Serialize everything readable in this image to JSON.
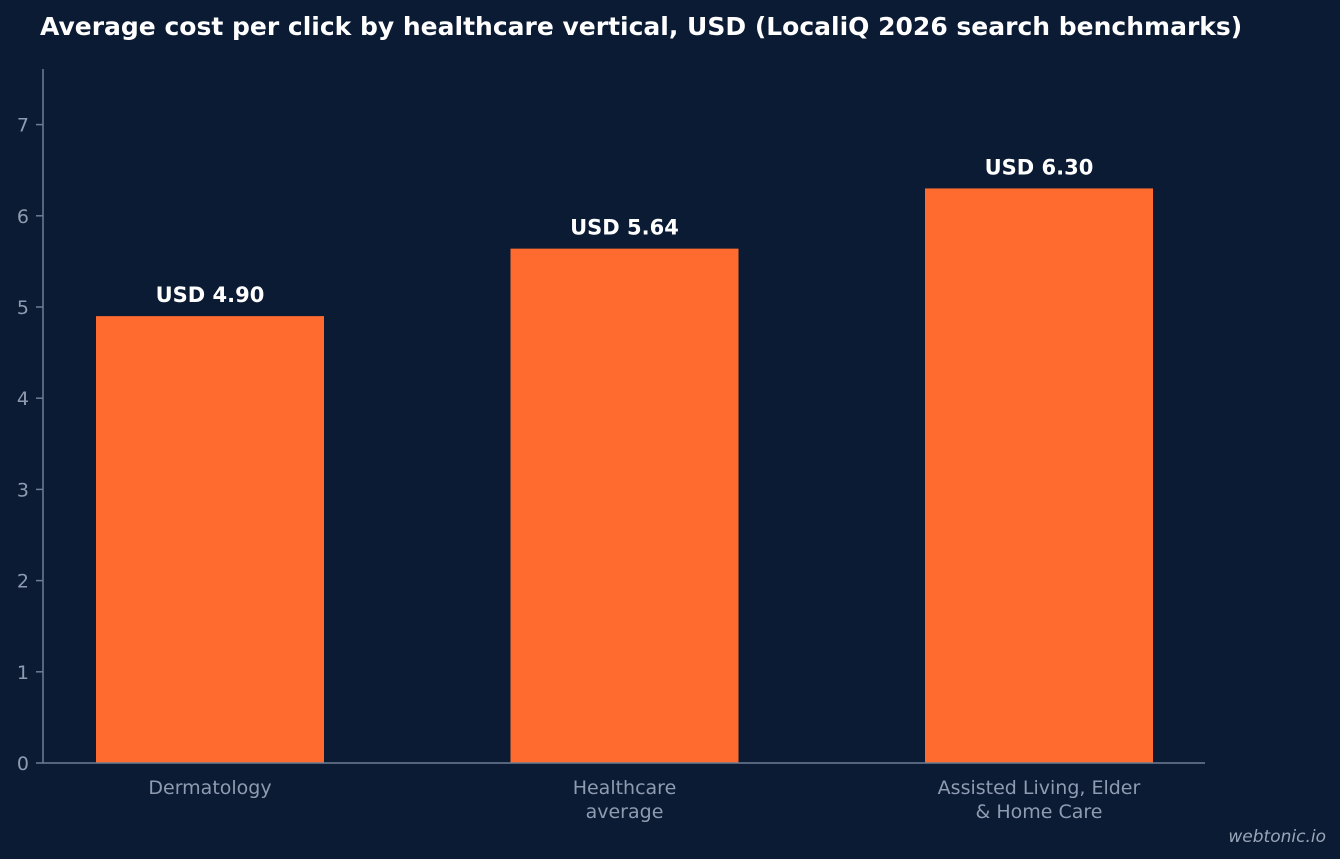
{
  "title": "Average cost per click by healthcare vertical, USD (LocaliQ 2026 search benchmarks)",
  "watermark": "webtonic.io",
  "colors": {
    "background": "#0b1b34",
    "bar": "#ff6b2f",
    "axis": "#6f7d93",
    "text_muted": "#8f9bb0",
    "text_strong": "#ffffff"
  },
  "chart_data": {
    "type": "bar",
    "title": "Average cost per click by healthcare vertical, USD (LocaliQ 2026 search benchmarks)",
    "categories": [
      [
        "Dermatology"
      ],
      [
        "Healthcare",
        "average"
      ],
      [
        "Assisted Living, Elder",
        "& Home Care"
      ]
    ],
    "values": [
      4.9,
      5.64,
      6.3
    ],
    "data_labels": [
      "USD 4.90",
      "USD 5.64",
      "USD 6.30"
    ],
    "yticks": [
      "0",
      "1",
      "2",
      "3",
      "4",
      "5",
      "6",
      "7"
    ],
    "ylim": [
      0,
      7.6
    ],
    "xlabel": "",
    "ylabel": "",
    "grid": false,
    "legend": "none"
  }
}
